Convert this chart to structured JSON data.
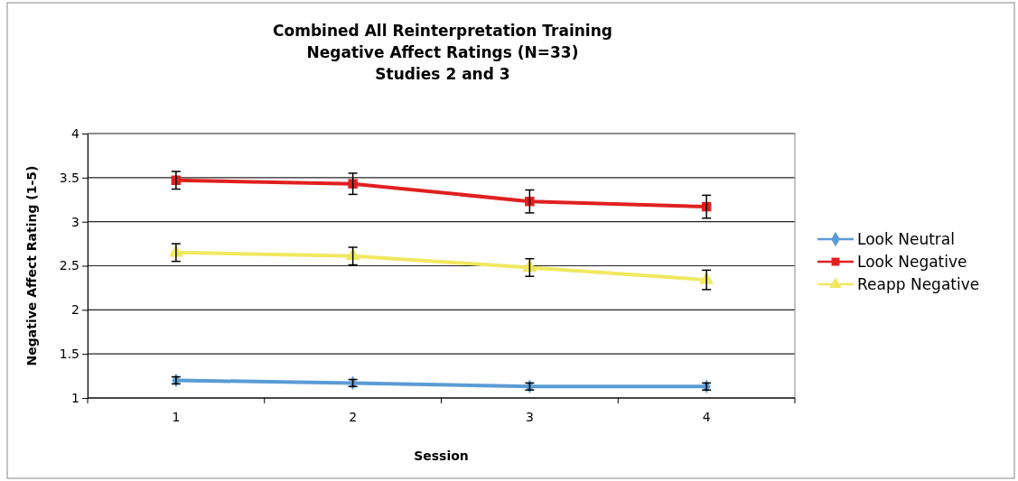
{
  "chart_data": {
    "type": "line",
    "title": "Combined All Reinterpretation Training\nNegative Affect Ratings (N=33)\nStudies 2 and 3",
    "xlabel": "Session",
    "ylabel": "Negative Affect Rating (1-5)",
    "categories": [
      "1",
      "2",
      "3",
      "4"
    ],
    "ylim": [
      1,
      4
    ],
    "yticks": [
      1,
      1.5,
      2,
      2.5,
      3,
      3.5,
      4
    ],
    "grid": "y",
    "legend": "right",
    "series": [
      {
        "name": "Look Neutral",
        "color": "#5b9bd5",
        "marker": "diamond",
        "values": [
          1.2,
          1.17,
          1.13,
          1.13
        ],
        "errors": [
          0.04,
          0.04,
          0.04,
          0.04
        ]
      },
      {
        "name": "Look Negative",
        "color": "#e02020",
        "marker": "square",
        "values": [
          3.47,
          3.43,
          3.23,
          3.17
        ],
        "errors": [
          0.1,
          0.12,
          0.13,
          0.13
        ]
      },
      {
        "name": "Reapp Negative",
        "color": "#f0e860",
        "marker": "triangle",
        "values": [
          2.65,
          2.61,
          2.48,
          2.34
        ],
        "errors": [
          0.1,
          0.1,
          0.1,
          0.11
        ]
      }
    ]
  }
}
